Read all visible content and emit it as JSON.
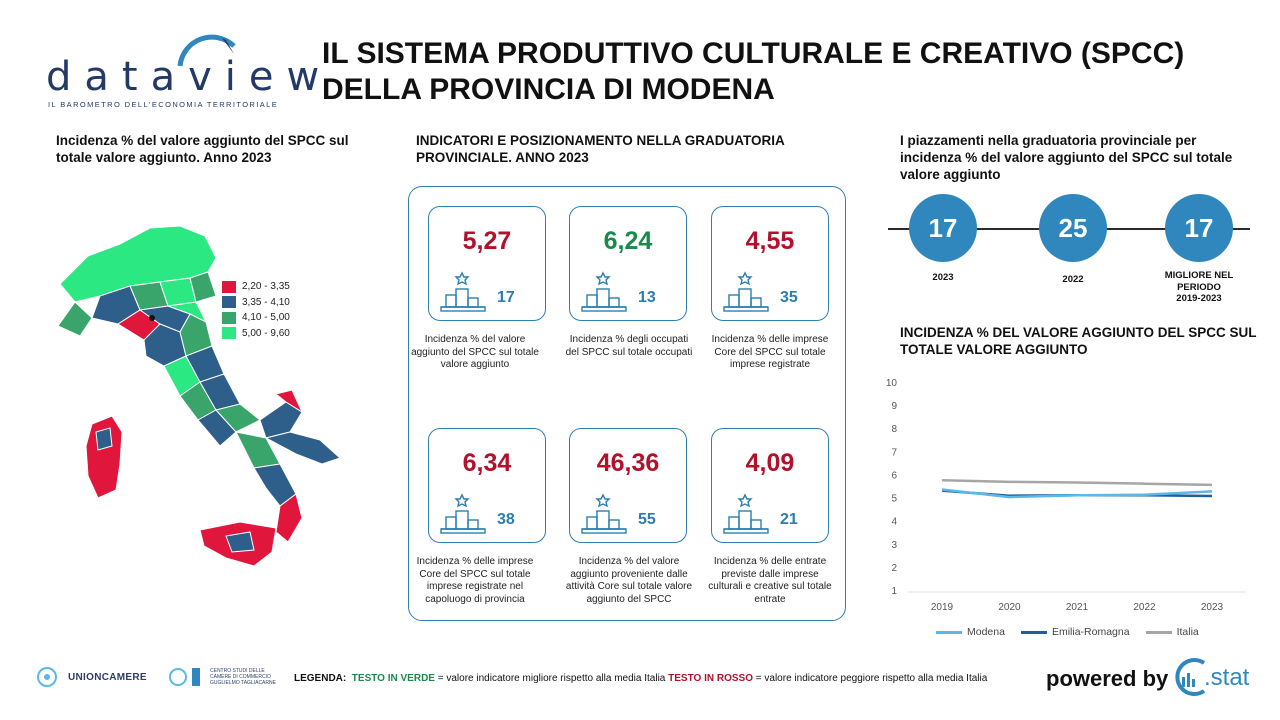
{
  "brand": {
    "logo_word": "dataview",
    "logo_tagline": "IL BAROMETRO DELL'ECONOMIA TERRITORIALE"
  },
  "header": {
    "title_line1": "IL SISTEMA PRODUTTIVO CULTURALE E CREATIVO (SPCC)",
    "title_line2": "DELLA PROVINCIA DI MODENA"
  },
  "map": {
    "title_line1": "Incidenza % del valore aggiunto del SPCC sul",
    "title_line2": "totale valore aggiunto. Anno 2023",
    "legend": [
      {
        "label": "2,20 - 3,35",
        "color": "#e0163d"
      },
      {
        "label": "3,35 - 4,10",
        "color": "#2e5f8a"
      },
      {
        "label": "4,10 - 5,00",
        "color": "#3aa56b"
      },
      {
        "label": "5,00 - 9,60",
        "color": "#2ce883"
      }
    ]
  },
  "indicators": {
    "title_line1": "INDICATORI E POSIZIONAMENTO NELLA GRADUATORIA",
    "title_line2": "PROVINCIALE. ANNO 2023",
    "items": [
      {
        "value": "5,27",
        "rank": "17",
        "status": "red",
        "desc": "Incidenza % del valore aggiunto del SPCC sul totale valore aggiunto"
      },
      {
        "value": "6,24",
        "rank": "13",
        "status": "green",
        "desc": "Incidenza % degli occupati del SPCC sul totale occupati"
      },
      {
        "value": "4,55",
        "rank": "35",
        "status": "red",
        "desc": "Incidenza % delle imprese Core del SPCC sul totale imprese registrate"
      },
      {
        "value": "6,34",
        "rank": "38",
        "status": "red",
        "desc": "Incidenza % delle imprese Core del SPCC sul totale imprese registrate nel capoluogo di provincia"
      },
      {
        "value": "46,36",
        "rank": "55",
        "status": "red",
        "desc": "Incidenza % del valore aggiunto proveniente dalle attività Core sul totale valore aggiunto del SPCC"
      },
      {
        "value": "4,09",
        "rank": "21",
        "status": "red",
        "desc": "Incidenza % delle entrate previste dalle imprese culturali e creative sul totale entrate"
      }
    ]
  },
  "placements": {
    "title_line1": "I piazzamenti nella graduatoria provinciale per",
    "title_line2": "incidenza % del valore aggiunto del SPCC sul totale",
    "title_line3": "valore aggiunto",
    "items": [
      {
        "rank": "17",
        "label_line1": "2023",
        "label_line2": "",
        "label_line3": ""
      },
      {
        "rank": "25",
        "label_line1": "2022",
        "label_line2": "",
        "label_line3": ""
      },
      {
        "rank": "17",
        "label_line1": "MIGLIORE NEL",
        "label_line2": "PERIODO",
        "label_line3": "2019-2023"
      }
    ]
  },
  "trend": {
    "title_line1": "INCIDENZA % DEL VALORE AGGIUNTO DEL SPCC SUL",
    "title_line2": "TOTALE VALORE AGGIUNTO"
  },
  "chart_data": {
    "type": "line",
    "title": "INCIDENZA % DEL VALORE AGGIUNTO DEL SPCC SUL TOTALE VALORE AGGIUNTO",
    "x": [
      "2019",
      "2020",
      "2021",
      "2022",
      "2023"
    ],
    "ylim": [
      1,
      10
    ],
    "yticks": [
      1,
      2,
      3,
      4,
      5,
      6,
      7,
      8,
      9,
      10
    ],
    "grid": false,
    "legend_position": "bottom",
    "series": [
      {
        "name": "Modena",
        "color": "#5bb8e8",
        "values": [
          5.35,
          5.02,
          5.1,
          5.12,
          5.27
        ]
      },
      {
        "name": "Emilia-Romagna",
        "color": "#1f5f9c",
        "values": [
          5.3,
          5.08,
          5.1,
          5.1,
          5.07
        ]
      },
      {
        "name": "Italia",
        "color": "#a6a6a6",
        "values": [
          5.75,
          5.68,
          5.65,
          5.6,
          5.55
        ]
      }
    ]
  },
  "footer": {
    "unioncamere": "UNIONCAMERE",
    "centro_studi": "CENTRO STUDI DELLE CAMERE DI COMMERCIO GUGLIELMO TAGLIACARNE",
    "legend_prefix": "LEGENDA:",
    "legend_green": "TESTO IN VERDE",
    "legend_green_text": "= valore indicatore migliore rispetto alla media Italia",
    "legend_red": "TESTO IN ROSSO",
    "legend_red_text": "= valore indicatore peggiore rispetto alla media Italia",
    "powered_by": "powered by",
    "cstat": ".stat"
  }
}
